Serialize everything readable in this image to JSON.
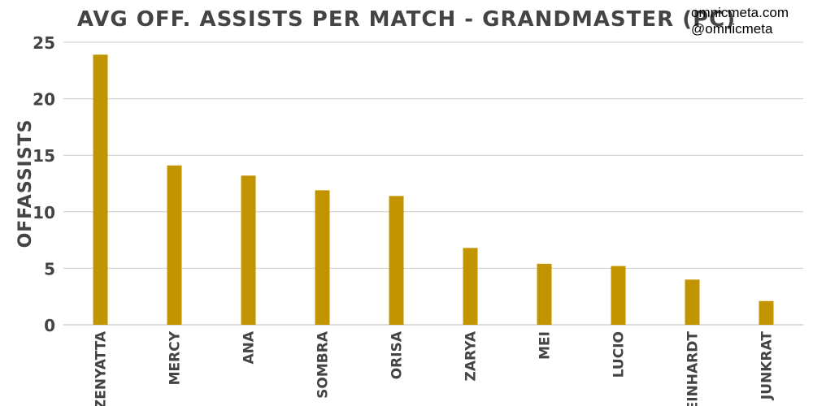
{
  "watermark": {
    "line1": "omnicmeta.com",
    "line2": "@omnicmeta"
  },
  "chart_data": {
    "type": "bar",
    "title": "AVG OFF. ASSISTS PER MATCH - GRANDMASTER (PC)",
    "xlabel": "",
    "ylabel": "OFFASSISTS",
    "categories": [
      "ZENYATTA",
      "MERCY",
      "ANA",
      "SOMBRA",
      "ORISA",
      "ZARYA",
      "MEI",
      "LUCIO",
      "REINHARDT",
      "JUNKRAT"
    ],
    "values": [
      23.9,
      14.1,
      13.2,
      11.9,
      11.4,
      6.8,
      5.4,
      5.2,
      4.0,
      2.1
    ],
    "ylim": [
      0,
      25
    ],
    "yticks": [
      0,
      5,
      10,
      15,
      20,
      25
    ],
    "grid": true,
    "bar_color": "#c29400",
    "grid_color": "#cccccc",
    "text_color": "#444444"
  }
}
